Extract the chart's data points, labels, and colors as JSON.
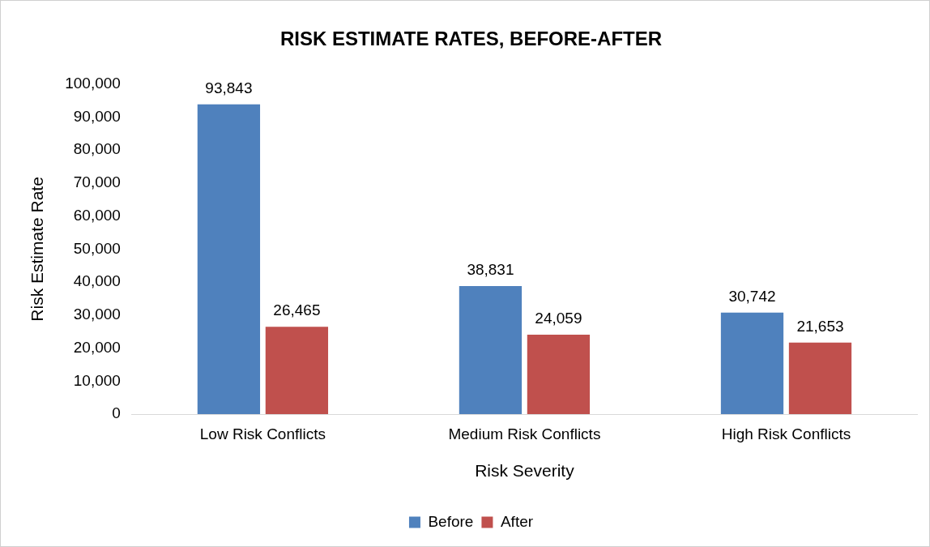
{
  "chart_data": {
    "type": "bar",
    "title": "RISK ESTIMATE RATES, BEFORE-AFTER",
    "xlabel": "Risk Severity",
    "ylabel": "Risk Estimate Rate",
    "categories": [
      "Low Risk Conflicts",
      "Medium Risk Conflicts",
      "High Risk Conflicts"
    ],
    "series": [
      {
        "name": "Before",
        "color": "#4f81bd",
        "values": [
          93843,
          38831,
          30742
        ],
        "value_labels": [
          "93,843",
          "38,831",
          "30,742"
        ]
      },
      {
        "name": "After",
        "color": "#c0504d",
        "values": [
          26465,
          24059,
          21653
        ],
        "value_labels": [
          "26,465",
          "24,059",
          "21,653"
        ]
      }
    ],
    "ylim": [
      0,
      100000
    ],
    "yticks": [
      0,
      {
        "value": 10000,
        "label": "10,000"
      },
      {
        "value": 20000,
        "label": "20,000"
      },
      {
        "value": 30000,
        "label": "30,000"
      },
      {
        "value": 40000,
        "label": "40,000"
      },
      {
        "value": 50000,
        "label": "50,000"
      },
      {
        "value": 60000,
        "label": "60,000"
      },
      {
        "value": 70000,
        "label": "70,000"
      },
      {
        "value": 80000,
        "label": "80,000"
      },
      {
        "value": 90000,
        "label": "90,000"
      },
      {
        "value": 100000,
        "label": "100,000"
      }
    ],
    "grid": false,
    "legend": "bottom"
  }
}
